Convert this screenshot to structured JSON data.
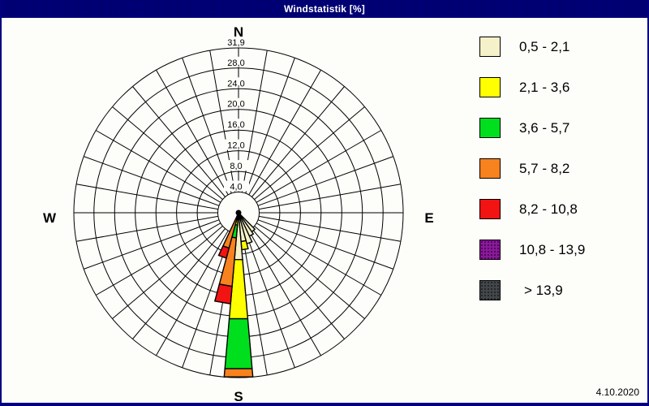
{
  "window": {
    "title": "Windstatistik [%]",
    "date": "4.10.2020"
  },
  "colors": {
    "frame_navy": "#000080",
    "background": "#fdfdfa",
    "grid_line": "#000000"
  },
  "compass": {
    "north": "N",
    "east": "E",
    "south": "S",
    "west": "W"
  },
  "chart_data": {
    "type": "windrose",
    "title": "Windstatistik [%]",
    "unit": "%",
    "sector_width_deg": 10,
    "num_spokes": 36,
    "max_value": 31.9,
    "ring_values": [
      4.0,
      8.0,
      12.0,
      16.0,
      20.0,
      24.0,
      28.0,
      31.9
    ],
    "ring_labels": [
      "4,0",
      "8,0",
      "12,0",
      "16,0",
      "20,0",
      "24,0",
      "28,0",
      "31,9"
    ],
    "speed_classes": [
      {
        "label": "0,5 - 2,1",
        "color": "#F5F1C9",
        "textured": false
      },
      {
        "label": "2,1 - 3,6",
        "color": "#FFFF00",
        "textured": false
      },
      {
        "label": "3,6 - 5,7",
        "color": "#00DF1E",
        "textured": false
      },
      {
        "label": "5,7 - 8,2",
        "color": "#F8821E",
        "textured": false
      },
      {
        "label": "8,2 - 10,8",
        "color": "#F21313",
        "textured": false
      },
      {
        "label": "10,8 - 13,9",
        "color": "#8C189C",
        "textured": true
      },
      {
        "label": "> 13,9",
        "color": "#43474A",
        "textured": true
      }
    ],
    "petals": [
      {
        "direction_deg": 140,
        "segments": [
          {
            "class_index": 0,
            "to": 4.5
          }
        ]
      },
      {
        "direction_deg": 150,
        "segments": [
          {
            "class_index": 0,
            "to": 5.0
          }
        ]
      },
      {
        "direction_deg": 160,
        "segments": [
          {
            "class_index": 0,
            "to": 6.2
          }
        ]
      },
      {
        "direction_deg": 170,
        "segments": [
          {
            "class_index": 0,
            "to": 5.6
          },
          {
            "class_index": 1,
            "to": 7.2
          }
        ]
      },
      {
        "direction_deg": 180,
        "segments": [
          {
            "class_index": 0,
            "to": 9.1
          },
          {
            "class_index": 1,
            "to": 20.6
          },
          {
            "class_index": 2,
            "to": 30.3
          },
          {
            "class_index": 3,
            "to": 31.9
          }
        ]
      },
      {
        "direction_deg": 190,
        "segments": [
          {
            "class_index": 0,
            "to": 1.2
          },
          {
            "class_index": 1,
            "to": 2.4
          },
          {
            "class_index": 2,
            "to": 4.9
          },
          {
            "class_index": 3,
            "to": 14.3
          },
          {
            "class_index": 4,
            "to": 17.7
          }
        ]
      },
      {
        "direction_deg": 200,
        "segments": [
          {
            "class_index": 0,
            "to": 0.5
          },
          {
            "class_index": 3,
            "to": 7.1
          },
          {
            "class_index": 4,
            "to": 9.1
          }
        ]
      }
    ]
  },
  "legend": {
    "items": [
      "0,5 - 2,1",
      "2,1 - 3,6",
      "3,6 - 5,7",
      "5,7 - 8,2",
      "8,2 - 10,8",
      "10,8 - 13,9",
      "> 13,9"
    ]
  }
}
